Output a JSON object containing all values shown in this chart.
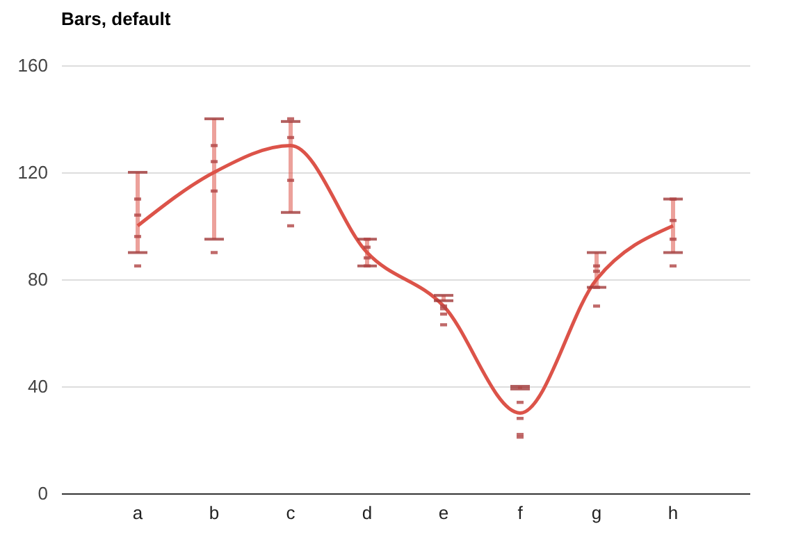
{
  "chart_data": {
    "type": "line",
    "title": "Bars, default",
    "categories": [
      "a",
      "b",
      "c",
      "d",
      "e",
      "f",
      "g",
      "h"
    ],
    "ylim": [
      0,
      160
    ],
    "yticks": [
      0,
      40,
      80,
      120,
      160
    ],
    "grid": "y",
    "series": [
      {
        "color": "#dc5349",
        "values": [
          100,
          120,
          130,
          90,
          70,
          30,
          80,
          100
        ],
        "errors": [
          [
            90,
            120
          ],
          [
            95,
            140
          ],
          [
            105,
            139
          ],
          [
            85,
            95
          ],
          [
            72,
            74
          ],
          [
            39,
            40
          ],
          [
            77,
            90
          ],
          [
            90,
            110
          ]
        ]
      },
      {
        "type": "scatter",
        "color": "#b04545",
        "x": [
          "a",
          "a",
          "a",
          "a",
          "b",
          "b",
          "b",
          "b",
          "c",
          "c",
          "c",
          "c",
          "d",
          "d",
          "d",
          "d",
          "e",
          "e",
          "e",
          "e",
          "f",
          "f",
          "f",
          "f",
          "g",
          "g",
          "g",
          "g",
          "h",
          "h",
          "h",
          "h"
        ],
        "values": [
          110,
          85,
          96,
          104,
          130,
          90,
          113,
          124,
          140,
          100,
          117,
          133,
          95,
          85,
          88,
          92,
          63,
          67,
          69,
          70,
          22,
          21,
          28,
          34,
          83,
          70,
          77,
          85,
          110,
          85,
          95,
          102
        ]
      }
    ]
  }
}
